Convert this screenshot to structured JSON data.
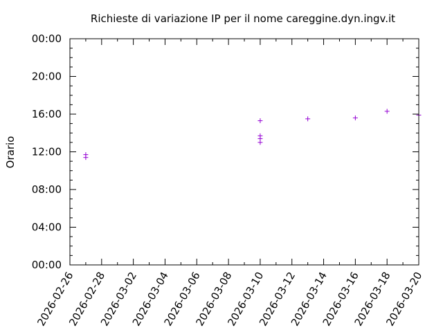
{
  "chart_data": {
    "type": "scatter",
    "title": "Richieste di variazione IP per il nome careggine.dyn.ingv.it",
    "ylabel": "Orario",
    "xlabel": "",
    "x_ticks": [
      "2026-02-26",
      "2026-02-28",
      "2026-03-02",
      "2026-03-04",
      "2026-03-06",
      "2026-03-08",
      "2026-03-10",
      "2026-03-12",
      "2026-03-14",
      "2026-03-16",
      "2026-03-18",
      "2026-03-20"
    ],
    "y_ticks": [
      "00:00",
      "04:00",
      "08:00",
      "12:00",
      "16:00",
      "20:00",
      "00:00"
    ],
    "xlim": [
      "2026-02-26",
      "2026-03-20"
    ],
    "ylim": [
      0,
      24
    ],
    "marker": "plus",
    "series_color": "#9400d3",
    "points": [
      {
        "x": "2026-02-27",
        "y": 11.7
      },
      {
        "x": "2026-02-27",
        "y": 11.4
      },
      {
        "x": "2026-03-10",
        "y": 15.3
      },
      {
        "x": "2026-03-10",
        "y": 13.7
      },
      {
        "x": "2026-03-10",
        "y": 13.4
      },
      {
        "x": "2026-03-10",
        "y": 13.0
      },
      {
        "x": "2026-03-13",
        "y": 15.5
      },
      {
        "x": "2026-03-16",
        "y": 15.6
      },
      {
        "x": "2026-03-18",
        "y": 16.3
      },
      {
        "x": "2026-03-20",
        "y": 15.9
      }
    ]
  }
}
